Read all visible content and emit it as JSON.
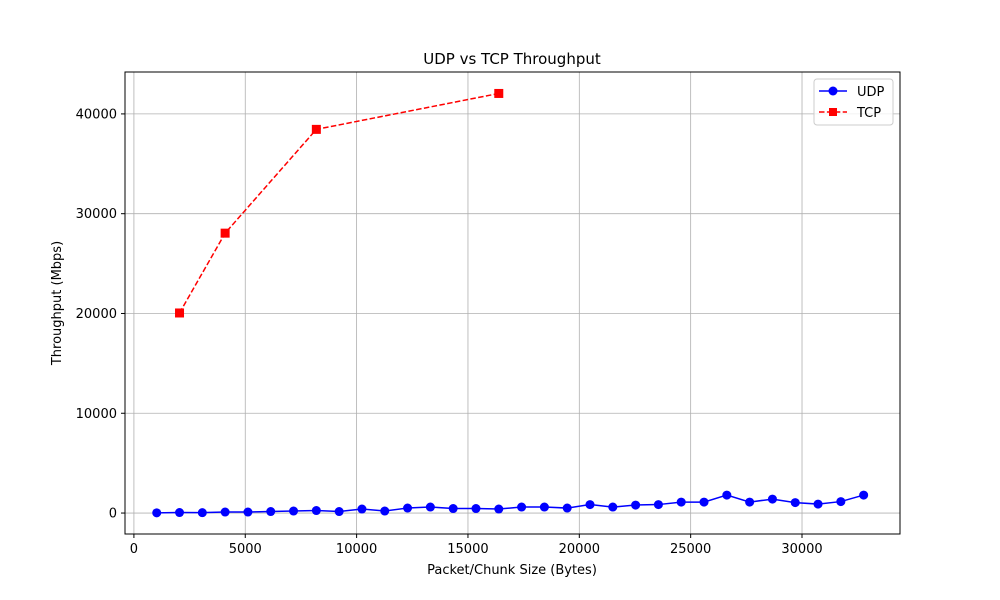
{
  "chart_data": {
    "type": "line",
    "title": "UDP vs TCP Throughput",
    "xlabel": "Packet/Chunk Size (Bytes)",
    "ylabel": "Throughput (Mbps)",
    "xlim": [
      -400,
      34400
    ],
    "ylim": [
      -2100,
      44200
    ],
    "xticks": [
      0,
      5000,
      10000,
      15000,
      20000,
      25000,
      30000
    ],
    "yticks": [
      0,
      10000,
      20000,
      30000,
      40000
    ],
    "grid": true,
    "legend_position": "top-right",
    "series": [
      {
        "name": "UDP",
        "color": "#0000ff",
        "line_style": "solid",
        "marker": "circle",
        "x": [
          1024,
          2048,
          3072,
          4096,
          5120,
          6144,
          7168,
          8192,
          9216,
          10240,
          11264,
          12288,
          13312,
          14336,
          15360,
          16384,
          17408,
          18432,
          19456,
          20480,
          21504,
          22528,
          23552,
          24576,
          25600,
          26624,
          27648,
          28672,
          29696,
          30720,
          31744,
          32768
        ],
        "y": [
          20,
          50,
          40,
          100,
          100,
          150,
          200,
          250,
          150,
          400,
          200,
          500,
          600,
          450,
          450,
          400,
          600,
          600,
          500,
          850,
          600,
          800,
          850,
          1100,
          1100,
          1800,
          1100,
          1400,
          1050,
          900,
          1150,
          1800
        ]
      },
      {
        "name": "TCP",
        "color": "#ff0000",
        "line_style": "dashed",
        "marker": "square",
        "x": [
          2048,
          4096,
          8192,
          16384
        ],
        "y": [
          20050,
          28050,
          38450,
          42050
        ]
      }
    ]
  }
}
